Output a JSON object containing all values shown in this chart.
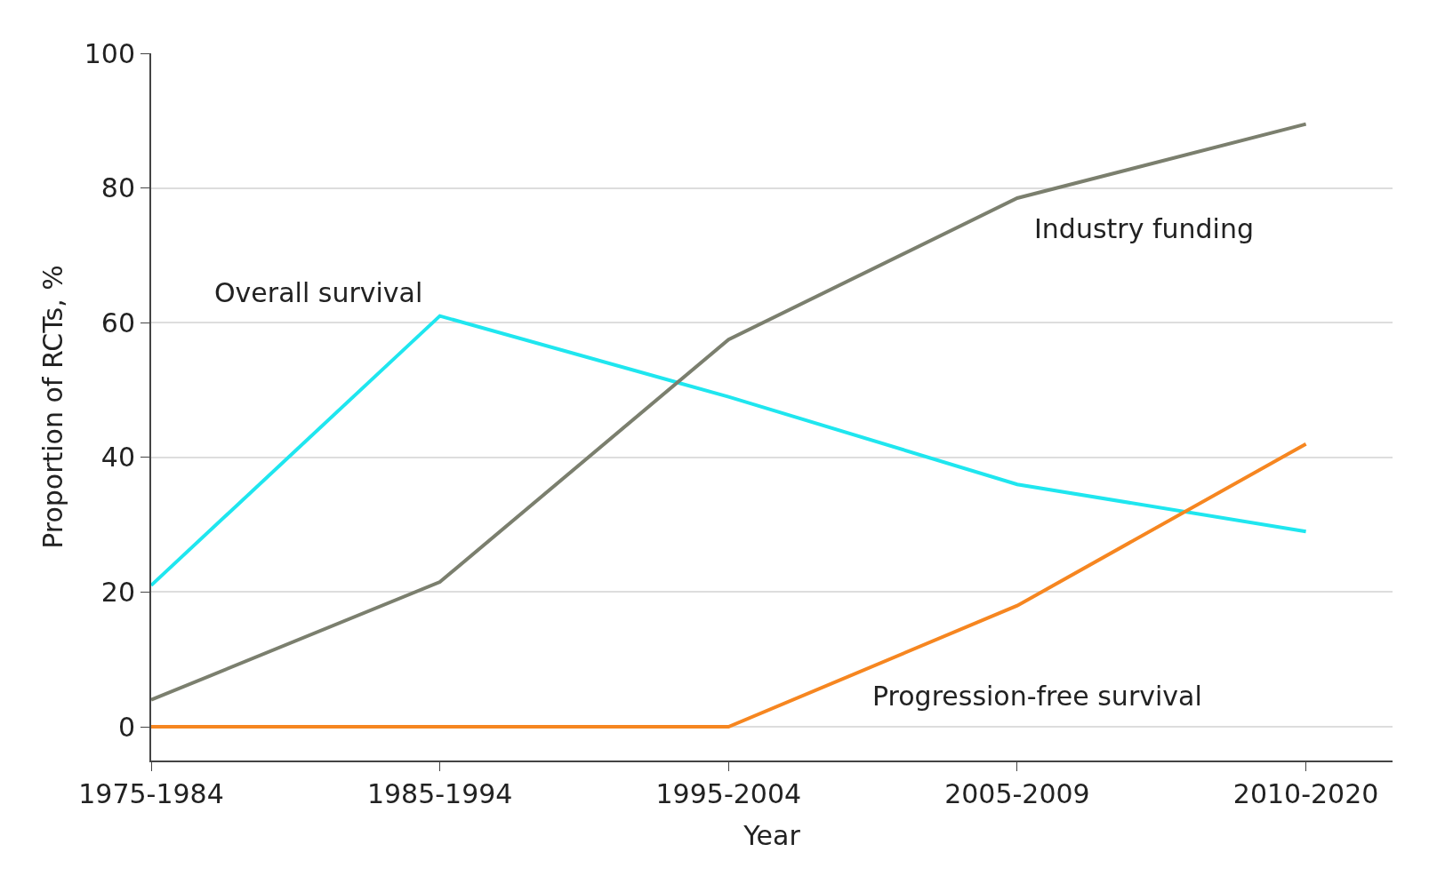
{
  "chart_data": {
    "type": "line",
    "xlabel": "Year",
    "ylabel": "Proportion of RCTs, %",
    "categories": [
      "1975-1984",
      "1985-1994",
      "1995-2004",
      "2005-2009",
      "2010-2020"
    ],
    "series": [
      {
        "color": "#1fe6ef",
        "values": [
          21,
          61,
          49,
          36,
          29
        ]
      },
      {
        "color": "#7b7f6e",
        "values": [
          4,
          21.5,
          57.5,
          78.5,
          89.5
        ]
      },
      {
        "color": "#f68620",
        "values": [
          0,
          0,
          0,
          18,
          42
        ]
      }
    ],
    "ylim": [
      -5,
      100
    ],
    "yticks": [
      0,
      20,
      40,
      60,
      80,
      100
    ],
    "grid": "y",
    "legend": false,
    "marker": "none",
    "line_style": "solid",
    "annotations": [
      "Overall survival",
      "Industry funding",
      "Progression-free survival"
    ]
  }
}
